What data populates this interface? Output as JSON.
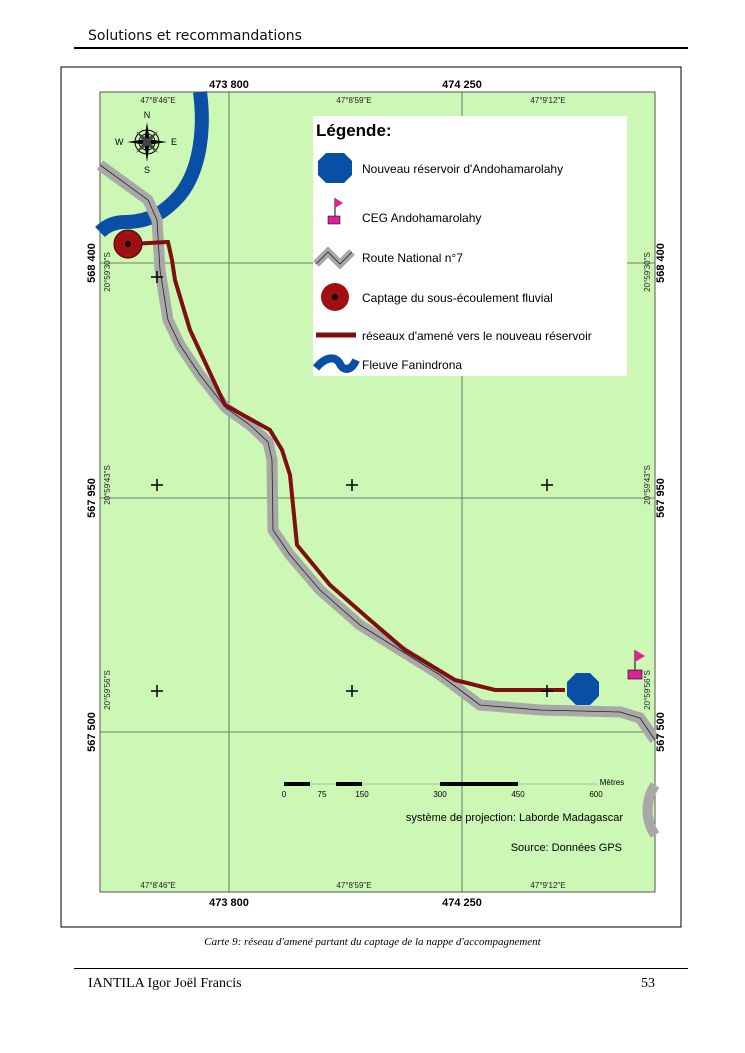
{
  "header": {
    "title": "Solutions et recommandations"
  },
  "map": {
    "top_eastings": [
      "473 800",
      "474 250"
    ],
    "bottom_eastings": [
      "473 800",
      "474 250"
    ],
    "northings": [
      "568 400",
      "567 950",
      "567 500"
    ],
    "longitudes": [
      "47°8'46\"E",
      "47°8'59\"E",
      "47°9'12\"E"
    ],
    "latitudes": [
      "20°59'30\"S",
      "20°59'43\"S",
      "20°59'56\"S"
    ],
    "compass": {
      "n": "N",
      "s": "S",
      "e": "E",
      "w": "W"
    },
    "legend": {
      "title": "Légende:",
      "items": [
        "Nouveau réservoir d'Andohamarolahy",
        "CEG Andohamarolahy",
        "Route National n°7",
        "Captage du sous-écoulement fluvial",
        "réseaux d'amené vers le nouveau réservoir",
        "Fleuve Fanindrona"
      ]
    },
    "scale": {
      "ticks": [
        "0",
        "75",
        "150",
        "300",
        "450",
        "600"
      ],
      "unit": "Mètres"
    },
    "projection": "système de projection: Laborde Madagascar",
    "source": "Source: Données GPS",
    "colors": {
      "land": "#ccf7b5",
      "river": "#0a4fa6",
      "road": "#a8a8a8",
      "pipe": "#7d0f0f",
      "captage": "#a01010",
      "flag": "#e0209a"
    }
  },
  "caption": "Carte 9: réseau d'amené partant du captage de la nappe d'accompagnement",
  "footer": {
    "author": "IANTILA Igor Joël Francis",
    "page": "53"
  }
}
